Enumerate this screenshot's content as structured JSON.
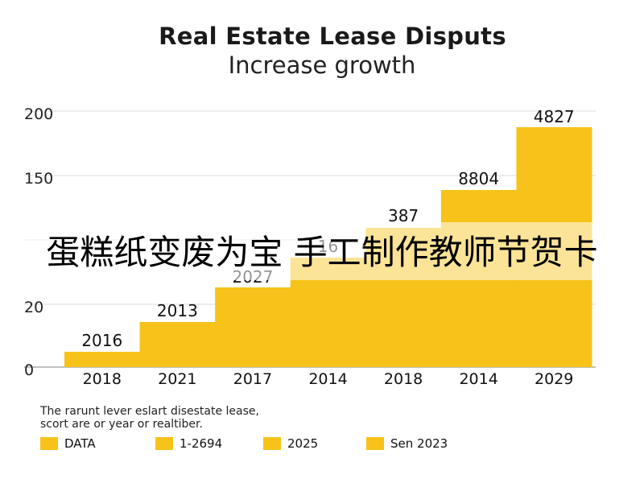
{
  "chart_data": {
    "type": "bar",
    "title": "Real Estate Lease Disputs",
    "subtitle": "Increase growth",
    "categories": [
      "2018",
      "2021",
      "2017",
      "2014",
      "2018",
      "2014",
      "2029"
    ],
    "values": [
      2016,
      2013,
      2027,
      null,
      387,
      8804,
      4827
    ],
    "data_labels": [
      "2016",
      "2013",
      "2027",
      "16",
      "387",
      "8804",
      "4827"
    ],
    "y_tick_labels": [
      "0",
      "20",
      "",
      "150",
      "200"
    ],
    "grid": true,
    "bar_color": "#f7c31a",
    "legend_position": "bottom",
    "legend": [
      {
        "label": "DATA"
      },
      {
        "label": "1-2694"
      },
      {
        "label": "2025"
      },
      {
        "label": "Sen 2023"
      }
    ]
  },
  "notes": [
    "The rarunt lever eslart disestate lease,",
    "scort are or year or realtiber."
  ],
  "overlay_text": "蛋糕纸变废为宝 手工制作教师节贺卡"
}
